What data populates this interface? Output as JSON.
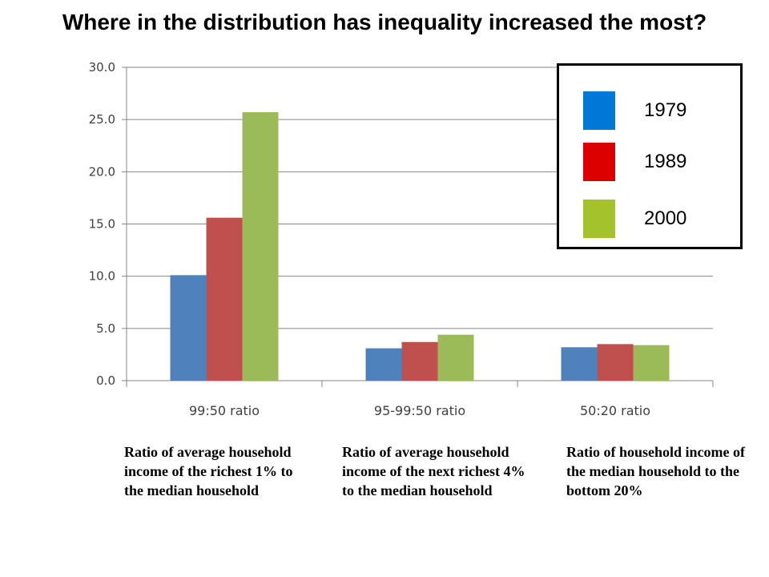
{
  "title": "Where in the distribution has inequality increased the most?",
  "chart_data": {
    "type": "bar",
    "categories": [
      "99:50 ratio",
      "95-99:50 ratio",
      "50:20 ratio"
    ],
    "series": [
      {
        "name": "1979",
        "color": "#4f81bd",
        "values": [
          10.1,
          3.1,
          3.2
        ]
      },
      {
        "name": "1989",
        "color": "#c0504d",
        "values": [
          15.6,
          3.7,
          3.5
        ]
      },
      {
        "name": "2000",
        "color": "#9bbb59",
        "values": [
          25.7,
          4.4,
          3.4
        ]
      }
    ],
    "ylim": [
      0,
      30
    ],
    "yticks": [
      "0.0",
      "5.0",
      "10.0",
      "15.0",
      "20.0",
      "25.0",
      "30.0"
    ],
    "grid": true,
    "legend_position": "top-right"
  },
  "legend": {
    "items": [
      {
        "label": "1979",
        "color": "#0078d7"
      },
      {
        "label": "1989",
        "color": "#dd0000"
      },
      {
        "label": "2000",
        "color": "#a4c22b"
      }
    ]
  },
  "descriptions": [
    "Ratio of average household income of the richest 1% to the median household",
    "Ratio of average household income of the next richest 4% to the median household",
    "Ratio of household income of the median household to the bottom 20%"
  ]
}
